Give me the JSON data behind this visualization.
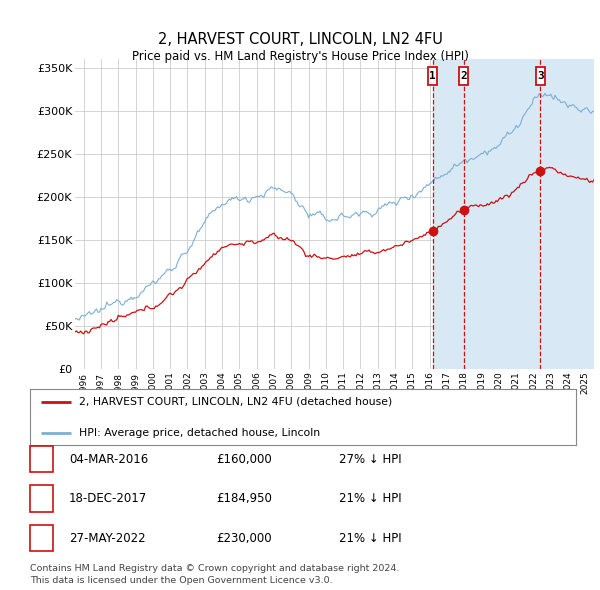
{
  "title": "2, HARVEST COURT, LINCOLN, LN2 4FU",
  "subtitle": "Price paid vs. HM Land Registry's House Price Index (HPI)",
  "ylabel_ticks": [
    "£0",
    "£50K",
    "£100K",
    "£150K",
    "£200K",
    "£250K",
    "£300K",
    "£350K"
  ],
  "ylim": [
    0,
    360000
  ],
  "xlim_start": 1995.5,
  "xlim_end": 2025.5,
  "hpi_color": "#7bafd4",
  "price_color": "#cc1111",
  "vline_color": "#cc1111",
  "shade_color": "#d8e8f5",
  "sales": [
    {
      "index": 1,
      "date": "04-MAR-2016",
      "price": 160000,
      "pct": "27% ↓ HPI",
      "year": 2016.17
    },
    {
      "index": 2,
      "date": "18-DEC-2017",
      "price": 184950,
      "pct": "21% ↓ HPI",
      "year": 2017.96
    },
    {
      "index": 3,
      "date": "27-MAY-2022",
      "price": 230000,
      "pct": "21% ↓ HPI",
      "year": 2022.4
    }
  ],
  "legend_entry1": "2, HARVEST COURT, LINCOLN, LN2 4FU (detached house)",
  "legend_entry2": "HPI: Average price, detached house, Lincoln",
  "footnote1": "Contains HM Land Registry data © Crown copyright and database right 2024.",
  "footnote2": "This data is licensed under the Open Government Licence v3.0.",
  "background_color": "#ffffff",
  "grid_color": "#cccccc"
}
